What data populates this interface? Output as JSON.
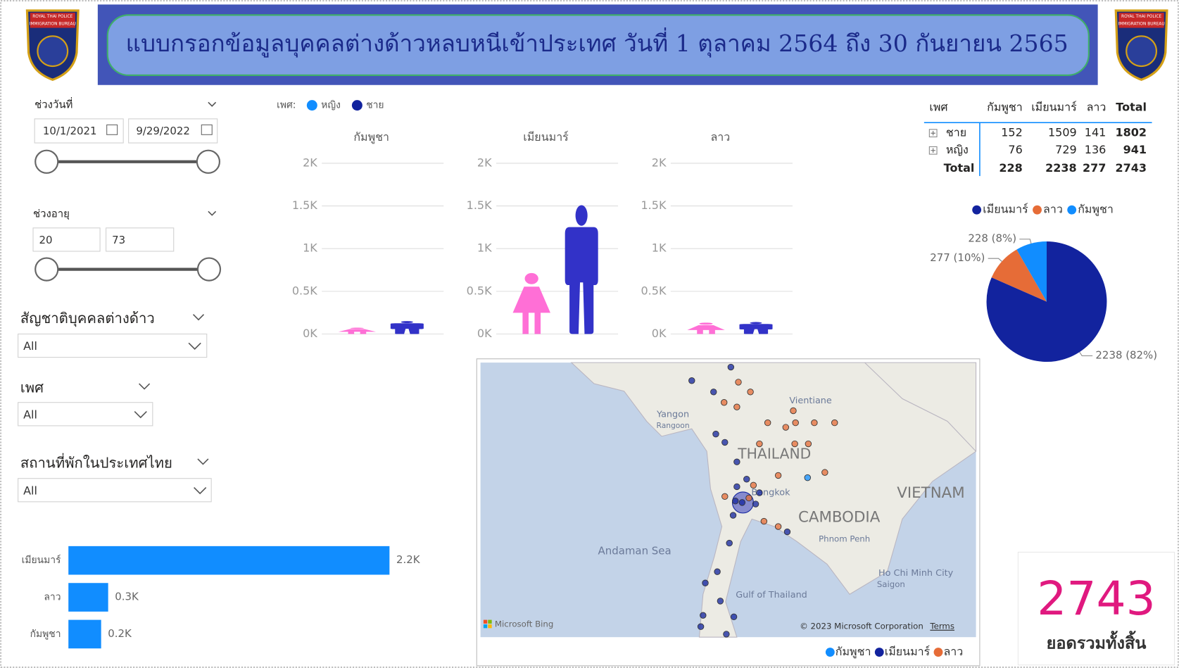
{
  "header": {
    "title": "แบบกรอกข้อมูลบุคคลต่างด้าวหลบหนีเข้าประเทศ วันที่ 1 ตุลาคม 2564 ถึง 30 กันยายน 2565",
    "logo_lines": [
      "ROYAL THAI POLICE",
      "IMMIGRATION BUREAU"
    ]
  },
  "slicers": {
    "date": {
      "label": "ช่วงวันที่",
      "from": "10/1/2021",
      "to": "9/29/2022"
    },
    "age": {
      "label": "ช่วงอายุ",
      "from": "20",
      "to": "73"
    },
    "nationality": {
      "label": "สัญชาติบุคคลต่างด้าว",
      "value": "All"
    },
    "gender": {
      "label": "เพศ",
      "value": "All"
    },
    "residence": {
      "label": "สถานที่พักในประเทศไทย",
      "value": "All"
    }
  },
  "chart_data": [
    {
      "type": "pictograph",
      "legend_title": "เพศ:",
      "categories": [
        "กัมพูชา",
        "เมียนมาร์",
        "ลาว"
      ],
      "series": [
        {
          "name": "หญิง",
          "color": "#ff6fd6",
          "legend_color": "#118dff",
          "values": [
            76,
            729,
            136
          ]
        },
        {
          "name": "ชาย",
          "color": "#3232c8",
          "legend_color": "#12239e",
          "values": [
            152,
            1509,
            141
          ]
        }
      ],
      "ylim": [
        0,
        2000
      ],
      "yticks": [
        {
          "value": 0,
          "label": "0K"
        },
        {
          "value": 500,
          "label": "0.5K"
        },
        {
          "value": 1000,
          "label": "1K"
        },
        {
          "value": 1500,
          "label": "1.5K"
        },
        {
          "value": 2000,
          "label": "2K"
        }
      ],
      "grid": true
    },
    {
      "type": "pie",
      "categories": [
        "เมียนมาร์",
        "ลาว",
        "กัมพูชา"
      ],
      "values": [
        2238,
        277,
        228
      ],
      "value_labels": [
        "2238 (82%)",
        "277 (10%)",
        "228 (8%)"
      ],
      "colors": [
        "#12239e",
        "#e66c37",
        "#118dff"
      ]
    },
    {
      "type": "hbar",
      "categories": [
        "เมียนมาร์",
        "ลาว",
        "กัมพูชา"
      ],
      "values": [
        2238,
        277,
        228
      ],
      "value_labels": [
        "2.2K",
        "0.3K",
        "0.2K"
      ],
      "color": "#118dff"
    }
  ],
  "table": {
    "columns": [
      "เพศ",
      "กัมพูชา",
      "เมียนมาร์",
      "ลาว",
      "Total"
    ],
    "rows": [
      [
        "ชาย",
        "152",
        "1509",
        "141",
        "1802"
      ],
      [
        "หญิง",
        "76",
        "729",
        "136",
        "941"
      ],
      [
        "Total",
        "228",
        "2238",
        "277",
        "2743"
      ]
    ]
  },
  "map": {
    "labels": [
      "Vientiane",
      "Yangon",
      "Rangoon",
      "THAILAND",
      "Bangkok",
      "VIETNAM",
      "CAMBODIA",
      "Andaman Sea",
      "Phnom Penh",
      "Gulf of Thailand",
      "Ho Chi Minh City",
      "Saigon"
    ],
    "brand": "Microsoft Bing",
    "copyright": "© 2023 Microsoft Corporation",
    "terms": "Terms",
    "legend": [
      {
        "name": "กัมพูชา",
        "color": "#118dff"
      },
      {
        "name": "เมียนมาร์",
        "color": "#12239e"
      },
      {
        "name": "ลาว",
        "color": "#e66c37"
      }
    ]
  },
  "card": {
    "value": 2743,
    "label": "ยอดรวมทั้งสิ้น"
  }
}
